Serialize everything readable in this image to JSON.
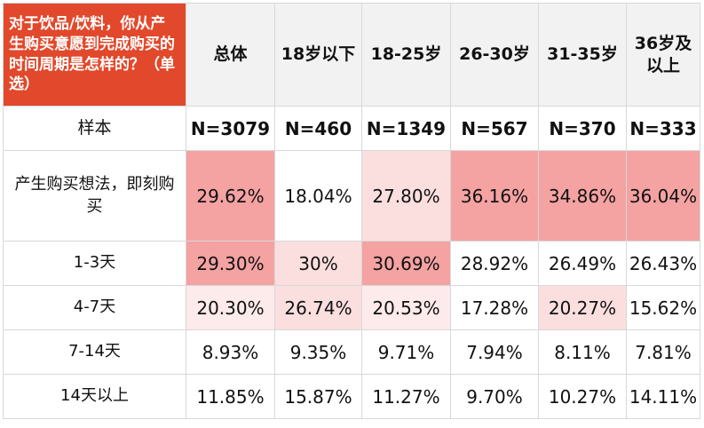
{
  "table": {
    "question": "对于饮品/饮料，你从产生购买意愿到完成购买的时间周期是怎样的？（单选）",
    "columns": [
      "总体",
      "18岁以下",
      "18-25岁",
      "26-30岁",
      "31-35岁",
      "36岁及以上"
    ],
    "sample": {
      "label": "样本",
      "values": [
        "N=3079",
        "N=460",
        "N=1349",
        "N=567",
        "N=370",
        "N=333"
      ]
    },
    "rows": [
      {
        "label": "产生购买想法，即刻购买",
        "values": [
          "29.62%",
          "18.04%",
          "27.80%",
          "36.16%",
          "34.86%",
          "36.04%"
        ],
        "heat": [
          "#f4a2a2",
          "#ffffff",
          "#fbdede",
          "#f4a2a2",
          "#f4a2a2",
          "#f4a2a2"
        ]
      },
      {
        "label": "1-3天",
        "values": [
          "29.30%",
          "30%",
          "30.69%",
          "28.92%",
          "26.49%",
          "26.43%"
        ],
        "heat": [
          "#f4a2a2",
          "#fbdede",
          "#f4a2a2",
          "#ffffff",
          "#ffffff",
          "#ffffff"
        ]
      },
      {
        "label": "4-7天",
        "values": [
          "20.30%",
          "26.74%",
          "20.53%",
          "17.28%",
          "20.27%",
          "15.62%"
        ],
        "heat": [
          "#fdeaea",
          "#fbdede",
          "#fdeaea",
          "#ffffff",
          "#fbdede",
          "#ffffff"
        ]
      },
      {
        "label": "7-14天",
        "values": [
          "8.93%",
          "9.35%",
          "9.71%",
          "7.94%",
          "8.11%",
          "7.81%"
        ],
        "heat": [
          "#ffffff",
          "#ffffff",
          "#ffffff",
          "#ffffff",
          "#ffffff",
          "#ffffff"
        ]
      },
      {
        "label": "14天以上",
        "values": [
          "11.85%",
          "15.87%",
          "11.27%",
          "9.70%",
          "10.27%",
          "14.11%"
        ],
        "heat": [
          "#ffffff",
          "#ffffff",
          "#ffffff",
          "#ffffff",
          "#ffffff",
          "#ffffff"
        ]
      }
    ]
  },
  "colors": {
    "question_bg": "#e2482b",
    "header_bg": "#f2f2f2",
    "heat_strong": "#f4a2a2",
    "heat_light": "#fbdede",
    "heat_faint": "#fdeaea"
  }
}
